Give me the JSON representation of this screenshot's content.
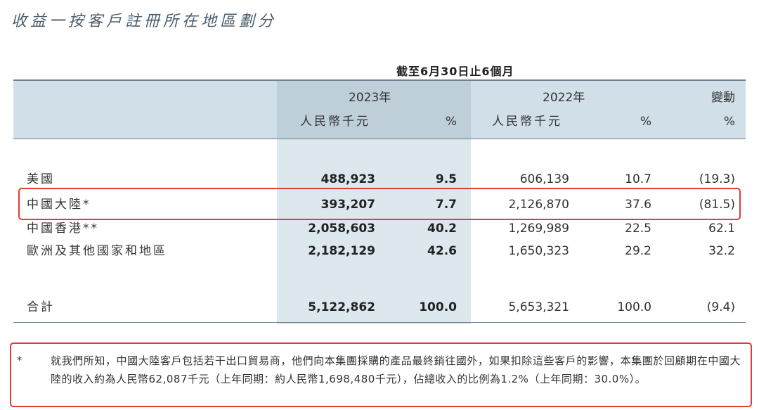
{
  "title": "收益一按客戶註冊所在地區劃分",
  "period": "截至6月30日止6個月",
  "headers": {
    "y2023": "2023年",
    "y2022": "2022年",
    "change": "變動",
    "rmb_2023": "人民幣千元",
    "pct_2023": "%",
    "rmb_2022": "人民幣千元",
    "pct_2022": "%",
    "pct_change": "%"
  },
  "rows": [
    {
      "label": "美國",
      "v2023": "488,923",
      "p2023": "9.5",
      "v2022": "606,139",
      "p2022": "10.7",
      "change": "(19.3)"
    },
    {
      "label": "中國大陸*",
      "v2023": "393,207",
      "p2023": "7.7",
      "v2022": "2,126,870",
      "p2022": "37.6",
      "change": "(81.5)"
    },
    {
      "label": "中國香港**",
      "v2023": "2,058,603",
      "p2023": "40.2",
      "v2022": "1,269,989",
      "p2022": "22.5",
      "change": "62.1"
    },
    {
      "label": "歐洲及其他國家和地區",
      "v2023": "2,182,129",
      "p2023": "42.6",
      "v2022": "1,650,323",
      "p2022": "29.2",
      "change": "32.2"
    }
  ],
  "total": {
    "label": "合計",
    "v2023": "5,122,862",
    "p2023": "100.0",
    "v2022": "5,653,321",
    "p2022": "100.0",
    "change": "(9.4)"
  },
  "footnote": {
    "marker": "*",
    "text": "就我們所知，中國大陸客戶包括若干出口貿易商，他們向本集團採購的產品最終銷往國外，如果扣除這些客戶的影響，本集團於回顧期在中國大陸的收入約為人民幣62,087千元（上年同期：約人民幣1,698,480千元），佔總收入的比例為1.2%（上年同期：30.0%）。"
  },
  "colors": {
    "highlight_border": "#e33b3b",
    "header_band": "#d0dfe8",
    "column_2023": "#dde8ee",
    "title": "#4a5e6e"
  }
}
